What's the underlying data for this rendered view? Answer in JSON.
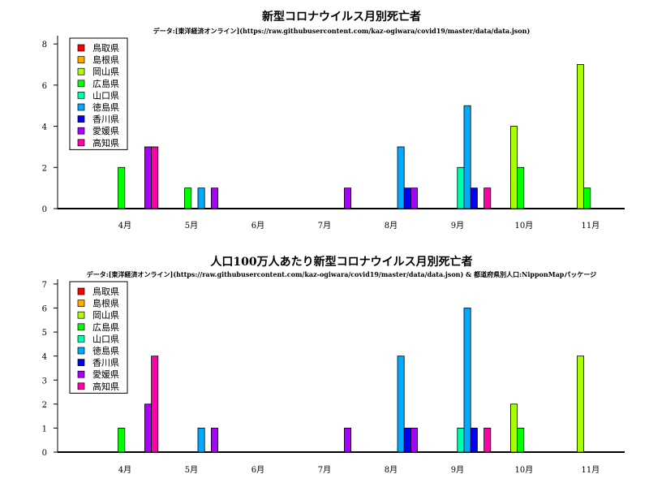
{
  "chart_data": [
    {
      "type": "bar",
      "title": "新型コロナウイルス月別死亡者",
      "subtitle": "データ:[東洋経済オンライン](https://raw.githubusercontent.com/kaz-ogiwara/covid19/master/data/data.json)",
      "categories": [
        "4月",
        "5月",
        "6月",
        "7月",
        "8月",
        "9月",
        "10月",
        "11月"
      ],
      "ylim": [
        0,
        8.4
      ],
      "yticks": [
        0,
        2,
        4,
        6,
        8
      ],
      "legend_position": "top-left",
      "series": [
        {
          "name": "鳥取県",
          "color": "#ff0000",
          "values": [
            0,
            0,
            0,
            0,
            0,
            0,
            0,
            0
          ]
        },
        {
          "name": "島根県",
          "color": "#ffaa00",
          "values": [
            0,
            0,
            0,
            0,
            0,
            0,
            0,
            0
          ]
        },
        {
          "name": "岡山県",
          "color": "#aaff00",
          "values": [
            0,
            0,
            0,
            0,
            0,
            0,
            4,
            7
          ]
        },
        {
          "name": "広島県",
          "color": "#00ff00",
          "values": [
            2,
            1,
            0,
            0,
            0,
            0,
            2,
            1
          ]
        },
        {
          "name": "山口県",
          "color": "#00ffaa",
          "values": [
            0,
            0,
            0,
            0,
            0,
            2,
            0,
            0
          ]
        },
        {
          "name": "徳島県",
          "color": "#00aaff",
          "values": [
            0,
            1,
            0,
            0,
            3,
            5,
            0,
            0
          ]
        },
        {
          "name": "香川県",
          "color": "#0000ff",
          "values": [
            0,
            0,
            0,
            0,
            1,
            1,
            0,
            0
          ]
        },
        {
          "name": "愛媛県",
          "color": "#aa00ff",
          "values": [
            3,
            1,
            0,
            1,
            1,
            0,
            0,
            0
          ]
        },
        {
          "name": "高知県",
          "color": "#ff00aa",
          "values": [
            3,
            0,
            0,
            0,
            0,
            1,
            0,
            0
          ]
        }
      ]
    },
    {
      "type": "bar",
      "title": "人口100万人あたり新型コロナウイルス月別死亡者",
      "subtitle": "データ:[東洋経済オンライン](https://raw.githubusercontent.com/kaz-ogiwara/covid19/master/data/data.json) & 都道府県別人口:NipponMapパッケージ",
      "categories": [
        "4月",
        "5月",
        "6月",
        "7月",
        "8月",
        "9月",
        "10月",
        "11月"
      ],
      "ylim": [
        0,
        7.2
      ],
      "yticks": [
        0,
        1,
        2,
        3,
        4,
        5,
        6,
        7
      ],
      "legend_position": "top-left",
      "series": [
        {
          "name": "鳥取県",
          "color": "#ff0000",
          "values": [
            0,
            0,
            0,
            0,
            0,
            0,
            0,
            0
          ]
        },
        {
          "name": "島根県",
          "color": "#ffaa00",
          "values": [
            0,
            0,
            0,
            0,
            0,
            0,
            0,
            0
          ]
        },
        {
          "name": "岡山県",
          "color": "#aaff00",
          "values": [
            0,
            0,
            0,
            0,
            0,
            0,
            2,
            4
          ]
        },
        {
          "name": "広島県",
          "color": "#00ff00",
          "values": [
            1,
            0,
            0,
            0,
            0,
            0,
            1,
            0
          ]
        },
        {
          "name": "山口県",
          "color": "#00ffaa",
          "values": [
            0,
            0,
            0,
            0,
            0,
            1,
            0,
            0
          ]
        },
        {
          "name": "徳島県",
          "color": "#00aaff",
          "values": [
            0,
            1,
            0,
            0,
            4,
            6,
            0,
            0
          ]
        },
        {
          "name": "香川県",
          "color": "#0000ff",
          "values": [
            0,
            0,
            0,
            0,
            1,
            1,
            0,
            0
          ]
        },
        {
          "name": "愛媛県",
          "color": "#aa00ff",
          "values": [
            2,
            1,
            0,
            1,
            1,
            0,
            0,
            0
          ]
        },
        {
          "name": "高知県",
          "color": "#ff00aa",
          "values": [
            4,
            0,
            0,
            0,
            0,
            1,
            0,
            0
          ]
        }
      ]
    }
  ]
}
